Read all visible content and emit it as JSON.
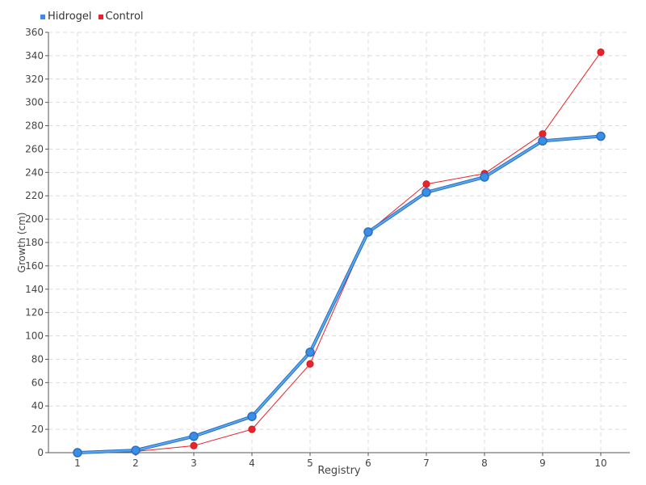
{
  "chart_data": {
    "type": "line",
    "categories": [
      "1",
      "2",
      "3",
      "4",
      "5",
      "6",
      "7",
      "8",
      "9",
      "10"
    ],
    "xlabel": "Registry",
    "ylabel": "Growth (cm)",
    "ylim": [
      0,
      360
    ],
    "ytick_step": 20,
    "yticks": [
      "0",
      "20",
      "40",
      "60",
      "80",
      "100",
      "120",
      "140",
      "160",
      "180",
      "200",
      "220",
      "240",
      "260",
      "280",
      "300",
      "320",
      "340",
      "360"
    ],
    "grid": true,
    "legend_position": "top-left",
    "series": [
      {
        "name": "Hidrogel",
        "color": "#3a8ee6",
        "values": [
          0,
          2,
          14,
          31,
          86,
          189,
          223,
          236,
          267,
          271
        ]
      },
      {
        "name": "Control",
        "color": "#e8232c",
        "values": [
          0,
          1,
          6,
          20,
          76,
          189,
          230,
          239,
          273,
          343
        ]
      }
    ]
  }
}
